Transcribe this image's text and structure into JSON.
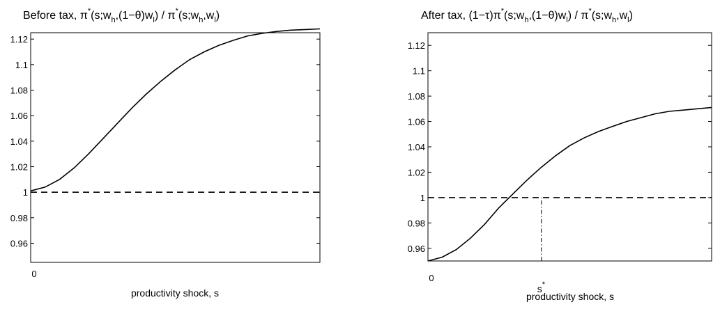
{
  "chart_data": [
    {
      "type": "line",
      "title": {
        "prefix": "Before tax,  ",
        "pi1": "π",
        "star1": "*",
        "p1": "(s;w",
        "s1": "h",
        "p2": ",(1−θ)w",
        "s2": "l",
        "p3": ") /  ",
        "pi2": "π",
        "star2": "*",
        "p4": "(s;w",
        "s3": "h",
        "p5": ",w",
        "s4": "l",
        "p6": ")"
      },
      "xlabel": "productivity shock, s",
      "ylabel": "",
      "xlim": [
        0,
        1
      ],
      "ylim": [
        0.945,
        1.125
      ],
      "yticks": [
        0.96,
        0.98,
        1,
        1.02,
        1.04,
        1.06,
        1.08,
        1.1,
        1.12
      ],
      "ytick_labels": [
        "0.96",
        "0.98",
        "1",
        "1.02",
        "1.04",
        "1.06",
        "1.08",
        "1.1",
        "1.12"
      ],
      "xtick_labels": [
        "0"
      ],
      "series": [
        {
          "style": "solid",
          "x": [
            0,
            0.05,
            0.1,
            0.15,
            0.2,
            0.25,
            0.3,
            0.35,
            0.4,
            0.45,
            0.5,
            0.55,
            0.6,
            0.65,
            0.7,
            0.75,
            0.8,
            0.85,
            0.9,
            0.95,
            1.0
          ],
          "y": [
            1.001,
            1.004,
            1.01,
            1.019,
            1.03,
            1.042,
            1.054,
            1.066,
            1.077,
            1.087,
            1.096,
            1.104,
            1.11,
            1.115,
            1.119,
            1.1225,
            1.1245,
            1.126,
            1.127,
            1.1275,
            1.128
          ]
        },
        {
          "style": "dashed",
          "x": [
            0,
            1
          ],
          "y": [
            1,
            1
          ]
        }
      ]
    },
    {
      "type": "line",
      "title": {
        "prefix": "After tax,   (1−τ)",
        "pi1": "π",
        "star1": "*",
        "p1": "(s;w",
        "s1": "h",
        "p2": ",(1−θ)w",
        "s2": "l",
        "p3": ") / ",
        "pi2": "π",
        "star2": "*",
        "p4": "(s;w",
        "s3": "h",
        "p5": ",w",
        "s4": "l",
        "p6": ")"
      },
      "xlabel": "productivity shock, s",
      "ylabel": "",
      "xlim": [
        0,
        1
      ],
      "ylim": [
        0.95,
        1.13
      ],
      "yticks": [
        0.96,
        0.98,
        1,
        1.02,
        1.04,
        1.06,
        1.08,
        1.1,
        1.12
      ],
      "ytick_labels": [
        "0.96",
        "0.98",
        "1",
        "1.02",
        "1.04",
        "1.06",
        "1.08",
        "1.1",
        "1.12"
      ],
      "xtick_labels": [
        "0"
      ],
      "annotation": {
        "label": "s",
        "sup": "*",
        "x": 0.4
      },
      "series": [
        {
          "style": "solid",
          "x": [
            0,
            0.05,
            0.1,
            0.15,
            0.2,
            0.25,
            0.3,
            0.35,
            0.4,
            0.45,
            0.5,
            0.55,
            0.6,
            0.65,
            0.7,
            0.75,
            0.8,
            0.85,
            0.9,
            0.95,
            1.0
          ],
          "y": [
            0.95,
            0.953,
            0.959,
            0.968,
            0.979,
            0.992,
            1.003,
            1.014,
            1.024,
            1.033,
            1.041,
            1.047,
            1.052,
            1.056,
            1.06,
            1.063,
            1.066,
            1.068,
            1.069,
            1.07,
            1.071
          ]
        },
        {
          "style": "dashed",
          "x": [
            0,
            1
          ],
          "y": [
            1,
            1
          ]
        },
        {
          "style": "dashdot",
          "x": [
            0.4,
            0.4
          ],
          "y": [
            0.95,
            1
          ]
        }
      ]
    }
  ]
}
